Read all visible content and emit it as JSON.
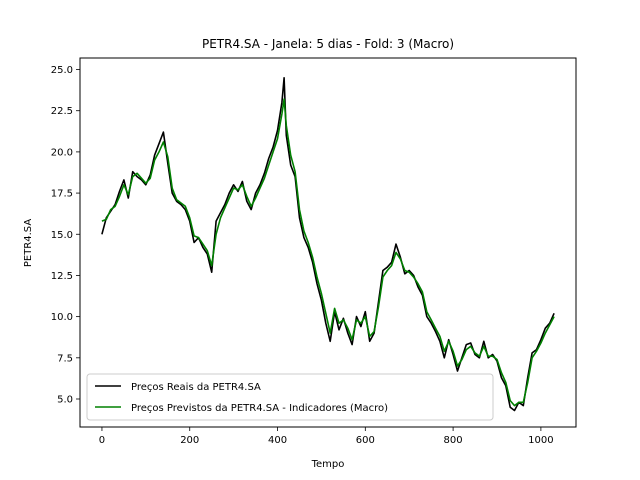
{
  "chart_data": {
    "type": "line",
    "title": "PETR4.SA - Janela: 5 dias - Fold: 3 (Macro)",
    "xlabel": "Tempo",
    "ylabel": "PETR4.SA",
    "xlim": [
      -50,
      1080
    ],
    "ylim": [
      3.3,
      25.7
    ],
    "xticks": [
      0,
      200,
      400,
      600,
      800,
      1000
    ],
    "yticks": [
      5.0,
      7.5,
      10.0,
      12.5,
      15.0,
      17.5,
      20.0,
      22.5,
      25.0
    ],
    "ytick_labels": [
      "5.0",
      "7.5",
      "10.0",
      "12.5",
      "15.0",
      "17.5",
      "20.0",
      "22.5",
      "25.0"
    ],
    "grid": false,
    "legend_position": "lower-left",
    "series": [
      {
        "name": "Preços Reais da PETR4.SA",
        "color": "#000000",
        "x": [
          0,
          10,
          20,
          30,
          40,
          50,
          60,
          70,
          80,
          90,
          100,
          110,
          120,
          130,
          140,
          150,
          160,
          170,
          180,
          190,
          200,
          210,
          220,
          230,
          240,
          250,
          260,
          270,
          280,
          290,
          300,
          310,
          320,
          330,
          340,
          350,
          360,
          370,
          380,
          390,
          400,
          410,
          415,
          420,
          430,
          440,
          450,
          460,
          470,
          480,
          490,
          500,
          510,
          520,
          530,
          540,
          550,
          560,
          570,
          580,
          590,
          600,
          610,
          620,
          630,
          640,
          650,
          660,
          670,
          680,
          690,
          700,
          710,
          720,
          730,
          740,
          750,
          760,
          770,
          780,
          790,
          800,
          810,
          820,
          830,
          840,
          850,
          860,
          870,
          880,
          890,
          900,
          910,
          920,
          930,
          940,
          950,
          960,
          970,
          980,
          990,
          1000,
          1010,
          1020,
          1030
        ],
        "values": [
          15.0,
          16.0,
          16.4,
          16.8,
          17.6,
          18.3,
          17.2,
          18.8,
          18.5,
          18.3,
          18.0,
          18.6,
          19.8,
          20.5,
          21.2,
          19.3,
          17.5,
          17.0,
          16.8,
          16.5,
          15.8,
          14.5,
          14.8,
          14.2,
          13.8,
          12.7,
          15.8,
          16.3,
          16.8,
          17.5,
          18.0,
          17.6,
          18.2,
          17.0,
          16.5,
          17.5,
          18.0,
          18.7,
          19.6,
          20.3,
          21.3,
          23.0,
          24.5,
          21.0,
          19.2,
          18.5,
          16.0,
          14.8,
          14.2,
          13.3,
          12.0,
          11.0,
          9.6,
          8.5,
          10.3,
          9.2,
          9.9,
          9.0,
          8.3,
          10.0,
          9.4,
          10.3,
          8.5,
          9.0,
          10.9,
          12.8,
          13.0,
          13.3,
          14.4,
          13.6,
          12.6,
          12.8,
          12.5,
          11.8,
          11.3,
          10.0,
          9.6,
          9.1,
          8.5,
          7.5,
          8.6,
          7.7,
          6.7,
          7.5,
          8.3,
          8.4,
          7.7,
          7.5,
          8.5,
          7.5,
          7.7,
          7.3,
          6.3,
          5.8,
          4.5,
          4.3,
          4.8,
          4.6,
          6.3,
          7.8,
          8.0,
          8.6,
          9.3,
          9.6,
          10.2
        ]
      },
      {
        "name": "Preços Previstos da PETR4.SA - Indicadores (Macro)",
        "color": "#008000",
        "x": [
          0,
          10,
          20,
          30,
          40,
          50,
          60,
          70,
          80,
          90,
          100,
          110,
          120,
          130,
          140,
          150,
          160,
          170,
          180,
          190,
          200,
          210,
          220,
          230,
          240,
          250,
          260,
          270,
          280,
          290,
          300,
          310,
          320,
          330,
          340,
          350,
          360,
          370,
          380,
          390,
          400,
          410,
          415,
          420,
          430,
          440,
          450,
          460,
          470,
          480,
          490,
          500,
          510,
          520,
          530,
          540,
          550,
          560,
          570,
          580,
          590,
          600,
          610,
          620,
          630,
          640,
          650,
          660,
          670,
          680,
          690,
          700,
          710,
          720,
          730,
          740,
          750,
          760,
          770,
          780,
          790,
          800,
          810,
          820,
          830,
          840,
          850,
          860,
          870,
          880,
          890,
          900,
          910,
          920,
          930,
          940,
          950,
          960,
          970,
          980,
          990,
          1000,
          1010,
          1020,
          1030
        ],
        "values": [
          15.8,
          15.9,
          16.5,
          16.7,
          17.3,
          18.0,
          17.4,
          18.5,
          18.7,
          18.4,
          18.1,
          18.4,
          19.5,
          20.0,
          20.6,
          19.7,
          17.8,
          17.1,
          16.9,
          16.7,
          16.0,
          14.9,
          14.8,
          14.4,
          14.0,
          13.1,
          15.0,
          16.0,
          16.6,
          17.2,
          17.8,
          17.7,
          18.0,
          17.3,
          16.7,
          17.2,
          17.8,
          18.4,
          19.2,
          20.0,
          20.8,
          22.3,
          23.2,
          21.6,
          19.8,
          18.8,
          16.5,
          15.2,
          14.5,
          13.6,
          12.4,
          11.4,
          10.2,
          9.0,
          10.5,
          9.6,
          9.8,
          9.3,
          8.6,
          9.8,
          9.6,
          10.0,
          8.8,
          9.1,
          10.6,
          12.4,
          12.8,
          13.1,
          13.9,
          13.5,
          12.8,
          12.7,
          12.4,
          12.0,
          11.5,
          10.3,
          9.8,
          9.3,
          8.8,
          7.9,
          8.5,
          7.9,
          7.0,
          7.4,
          8.0,
          8.2,
          7.8,
          7.6,
          8.2,
          7.6,
          7.6,
          7.4,
          6.6,
          6.0,
          4.9,
          4.6,
          4.8,
          4.8,
          6.0,
          7.5,
          7.9,
          8.4,
          9.0,
          9.5,
          10.0
        ]
      }
    ]
  }
}
